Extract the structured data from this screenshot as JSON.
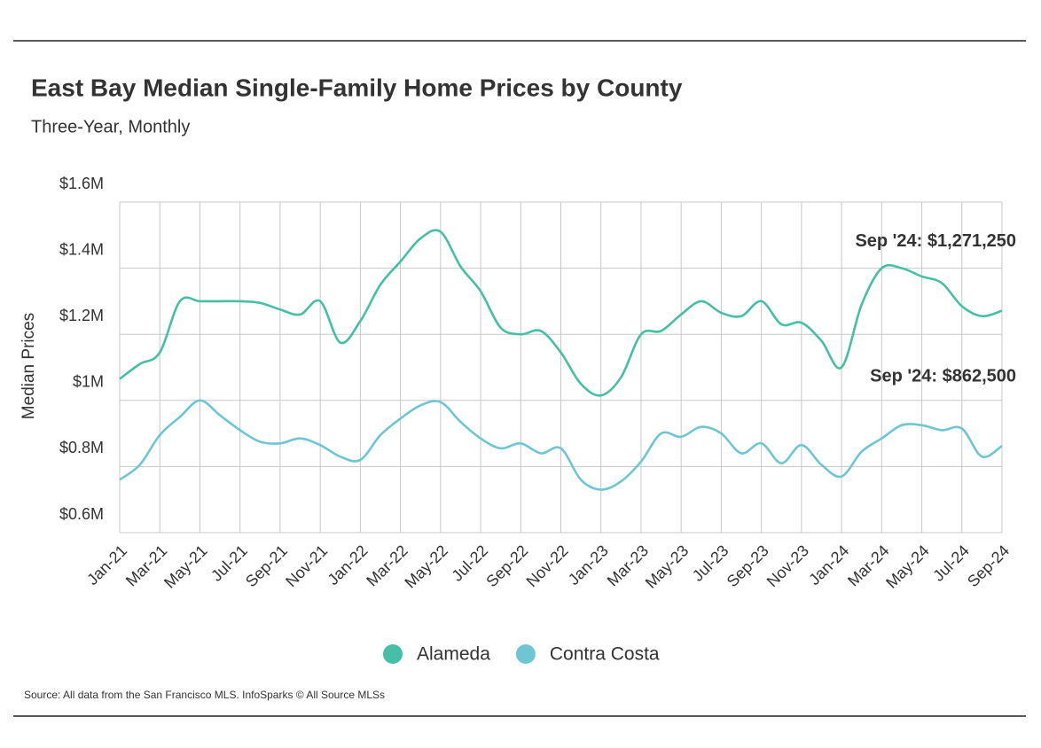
{
  "chart_data": {
    "type": "line",
    "title": "East Bay Median Single-Family Home Prices by County",
    "subtitle": "Three-Year, Monthly",
    "y_label": "Median Prices",
    "source": "Source:  All data from the San Francisco MLS. InfoSparks © All Source MLSs",
    "categories": [
      "Jan-21",
      null,
      "Mar-21",
      null,
      "May-21",
      null,
      "Jul-21",
      null,
      "Sep-21",
      null,
      "Nov-21",
      null,
      "Jan-22",
      null,
      "Mar-22",
      null,
      "May-22",
      null,
      "Jul-22",
      null,
      "Sep-22",
      null,
      "Nov-22",
      null,
      "Jan-23",
      null,
      "Mar-23",
      null,
      "May-23",
      null,
      "Jul-23",
      null,
      "Sep-23",
      null,
      "Nov-23",
      null,
      "Jan-24",
      null,
      "Mar-24",
      null,
      "May-24",
      null,
      "Jul-24",
      null,
      "Sep-24"
    ],
    "series": [
      {
        "name": "Alameda",
        "color": "#45bfa6",
        "end_label": "Sep '24: $1,271,250",
        "values": [
          1065000,
          1110000,
          1145000,
          1300000,
          1300000,
          1300000,
          1300000,
          1295000,
          1275000,
          1260000,
          1300000,
          1175000,
          1240000,
          1350000,
          1420000,
          1490000,
          1510000,
          1405000,
          1330000,
          1220000,
          1200000,
          1210000,
          1145000,
          1050000,
          1015000,
          1070000,
          1200000,
          1210000,
          1260000,
          1300000,
          1265000,
          1255000,
          1300000,
          1230000,
          1235000,
          1180000,
          1100000,
          1290000,
          1400000,
          1400000,
          1375000,
          1355000,
          1285000,
          1255000,
          1271250
        ]
      },
      {
        "name": "Contra Costa",
        "color": "#6fc6d3",
        "end_label": "Sep '24: $862,500",
        "values": [
          760000,
          805000,
          895000,
          950000,
          1000000,
          955000,
          910000,
          875000,
          870000,
          885000,
          865000,
          830000,
          820000,
          895000,
          945000,
          985000,
          995000,
          935000,
          885000,
          855000,
          870000,
          840000,
          855000,
          760000,
          730000,
          755000,
          815000,
          900000,
          890000,
          920000,
          900000,
          840000,
          870000,
          810000,
          865000,
          805000,
          770000,
          845000,
          885000,
          925000,
          925000,
          910000,
          915000,
          830000,
          862500
        ]
      }
    ],
    "ylim": [
      600000,
      1600000
    ],
    "yticks": [
      {
        "value": 600000,
        "label": "$0.6M"
      },
      {
        "value": 800000,
        "label": "$0.8M"
      },
      {
        "value": 1000000,
        "label": "$1M"
      },
      {
        "value": 1200000,
        "label": "$1.2M"
      },
      {
        "value": 1400000,
        "label": "$1.4M"
      },
      {
        "value": 1600000,
        "label": "$1.6M"
      }
    ],
    "grid": true,
    "legend": "bottom"
  }
}
